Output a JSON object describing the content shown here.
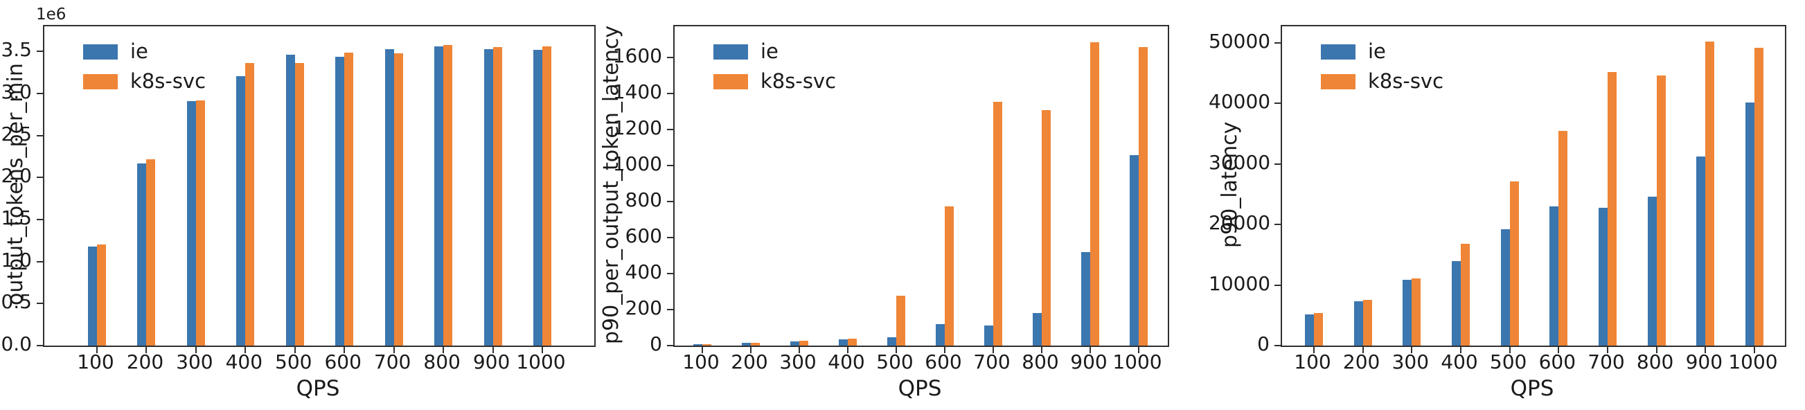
{
  "figure": {
    "background": "#ffffff"
  },
  "colors": {
    "ie": "#3b76af",
    "k8s_svc": "#ef8536",
    "spine": "#2f2f2f",
    "text": "#1a1a1a"
  },
  "chart_data": [
    {
      "type": "bar",
      "title": "",
      "ylabel": "output_tokens_per_min",
      "xlabel": "QPS",
      "y_offset_text": "1e6",
      "grid": false,
      "legend_position": "upper left",
      "categories": [
        "100",
        "200",
        "300",
        "400",
        "500",
        "600",
        "700",
        "800",
        "900",
        "1000"
      ],
      "ylim": [
        0,
        3800000
      ],
      "yticks": {
        "values": [
          0,
          500000,
          1000000,
          1500000,
          2000000,
          2500000,
          3000000,
          3500000
        ],
        "labels": [
          "0.0",
          "0.5",
          "1.0",
          "1.5",
          "2.0",
          "2.5",
          "3.0",
          "3.5"
        ]
      },
      "series": [
        {
          "name": "ie",
          "color": "#3b76af",
          "values": [
            1180000,
            2170000,
            2910000,
            3210000,
            3460000,
            3440000,
            3530000,
            3560000,
            3530000,
            3520000
          ]
        },
        {
          "name": "k8s-svc",
          "color": "#ef8536",
          "values": [
            1200000,
            2220000,
            2920000,
            3360000,
            3360000,
            3490000,
            3480000,
            3580000,
            3550000,
            3560000
          ]
        }
      ]
    },
    {
      "type": "bar",
      "title": "",
      "ylabel": "p90_per_output_token_latency",
      "xlabel": "QPS",
      "y_offset_text": "",
      "grid": false,
      "legend_position": "upper left",
      "categories": [
        "100",
        "200",
        "300",
        "400",
        "500",
        "600",
        "700",
        "800",
        "900",
        "1000"
      ],
      "ylim": [
        0,
        1775
      ],
      "yticks": {
        "values": [
          0,
          200,
          400,
          600,
          800,
          1000,
          1200,
          1400,
          1600
        ],
        "labels": [
          "0",
          "200",
          "400",
          "600",
          "800",
          "1000",
          "1200",
          "1400",
          "1600"
        ]
      },
      "series": [
        {
          "name": "ie",
          "color": "#3b76af",
          "values": [
            8,
            16,
            25,
            34,
            46,
            119,
            112,
            181,
            520,
            1060
          ]
        },
        {
          "name": "k8s-svc",
          "color": "#ef8536",
          "values": [
            9,
            17,
            26,
            39,
            277,
            775,
            1355,
            1310,
            1685,
            1660
          ]
        }
      ]
    },
    {
      "type": "bar",
      "title": "",
      "ylabel": "p90_latency",
      "xlabel": "QPS",
      "y_offset_text": "",
      "grid": false,
      "legend_position": "upper left",
      "categories": [
        "100",
        "200",
        "300",
        "400",
        "500",
        "600",
        "700",
        "800",
        "900",
        "1000"
      ],
      "ylim": [
        0,
        52700
      ],
      "yticks": {
        "values": [
          0,
          10000,
          20000,
          30000,
          40000,
          50000
        ],
        "labels": [
          "0",
          "10000",
          "20000",
          "30000",
          "40000",
          "50000"
        ]
      },
      "series": [
        {
          "name": "ie",
          "color": "#3b76af",
          "values": [
            5200,
            7300,
            10900,
            13900,
            19200,
            23000,
            22700,
            24600,
            31200,
            40100
          ]
        },
        {
          "name": "k8s-svc",
          "color": "#ef8536",
          "values": [
            5350,
            7500,
            11100,
            16800,
            27100,
            35400,
            45200,
            44600,
            50200,
            49200
          ]
        }
      ]
    }
  ]
}
